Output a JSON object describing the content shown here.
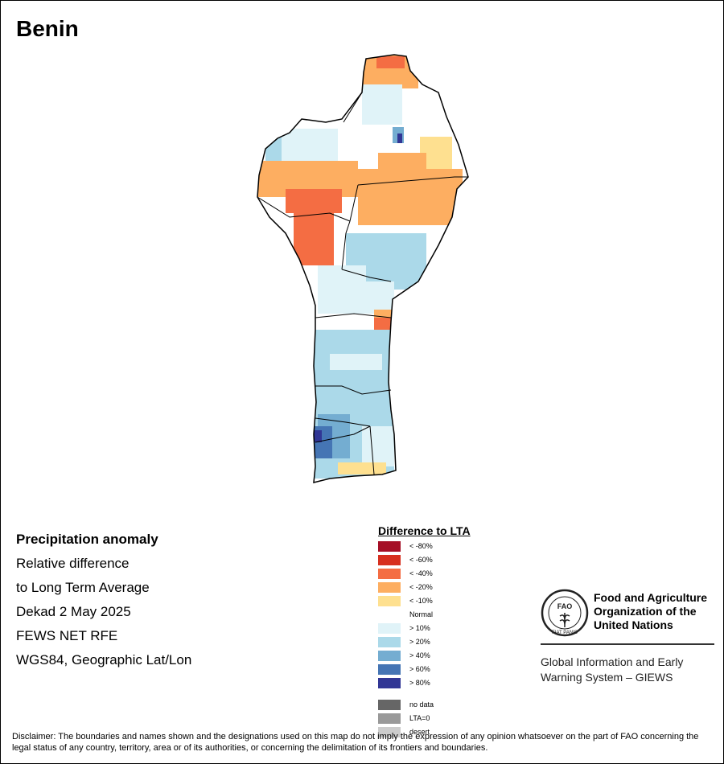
{
  "title": "Benin",
  "info": {
    "heading": "Precipitation anomaly",
    "line1": "Relative difference",
    "line2": "to Long Term Average",
    "period": "Dekad 2 May 2025",
    "source": "FEWS NET RFE",
    "projection": "WGS84, Geographic Lat/Lon"
  },
  "legend": {
    "title": "Difference to LTA",
    "classes": [
      {
        "label": "< -80%",
        "color": "#a50f26"
      },
      {
        "label": "< -60%",
        "color": "#d7301f"
      },
      {
        "label": "< -40%",
        "color": "#f46d43"
      },
      {
        "label": "< -20%",
        "color": "#fdae61"
      },
      {
        "label": "< -10%",
        "color": "#fee090"
      },
      {
        "label": "Normal",
        "color": "#ffffff"
      },
      {
        "label": "> 10%",
        "color": "#e0f3f8"
      },
      {
        "label": "> 20%",
        "color": "#abd9e9"
      },
      {
        "label": "> 40%",
        "color": "#74add1"
      },
      {
        "label": "> 60%",
        "color": "#4575b4"
      },
      {
        "label": "> 80%",
        "color": "#313695"
      }
    ],
    "extra": [
      {
        "label": "no data",
        "color": "#666666"
      },
      {
        "label": "LTA=0",
        "color": "#999999"
      },
      {
        "label": "desert",
        "color": "#cccccc"
      }
    ]
  },
  "logo": {
    "org_line1": "Food and Agriculture",
    "org_line2": "Organization of the",
    "org_line3": "United Nations",
    "system_line1": "Global Information and Early",
    "system_line2": "Warning System – GIEWS",
    "emblem_text": "FIAT PANIS",
    "emblem_letters": "FAO"
  },
  "disclaimer": "Disclaimer: The boundaries and names shown and the designations used on this map do not imply the expression of any opinion whatsoever on the part of FAO concerning the legal status of any country, territory, area or of its authorities, or concerning the delimitation of its frontiers and boundaries."
}
